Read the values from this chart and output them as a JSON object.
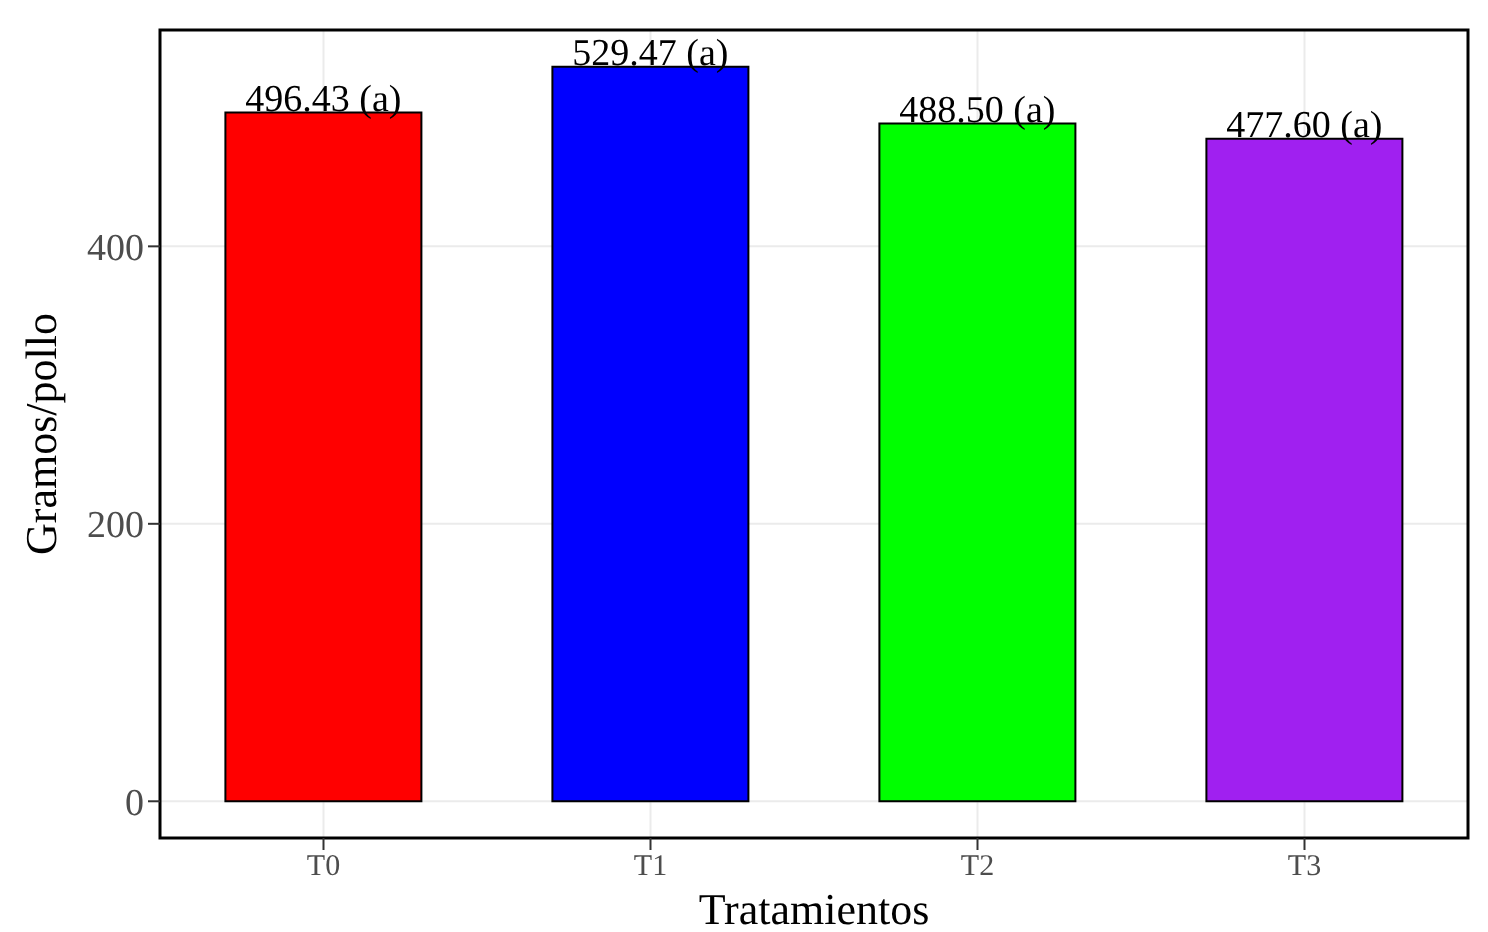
{
  "chart_data": {
    "type": "bar",
    "xlabel": "Tratamientos",
    "ylabel": "Gramos/pollo",
    "categories": [
      "T0",
      "T1",
      "T2",
      "T3"
    ],
    "values": [
      496.43,
      529.47,
      488.5,
      477.6
    ],
    "colors": [
      "#ff0000",
      "#0000ff",
      "#00ff00",
      "#a020f0"
    ],
    "value_labels": [
      "496.43 (a)",
      "529.47 (a)",
      "488.50 (a)",
      "477.60 (a)"
    ],
    "ylim": [
      -26.47,
      555.94
    ],
    "yticks": [
      0,
      200,
      400
    ],
    "grid": true
  }
}
